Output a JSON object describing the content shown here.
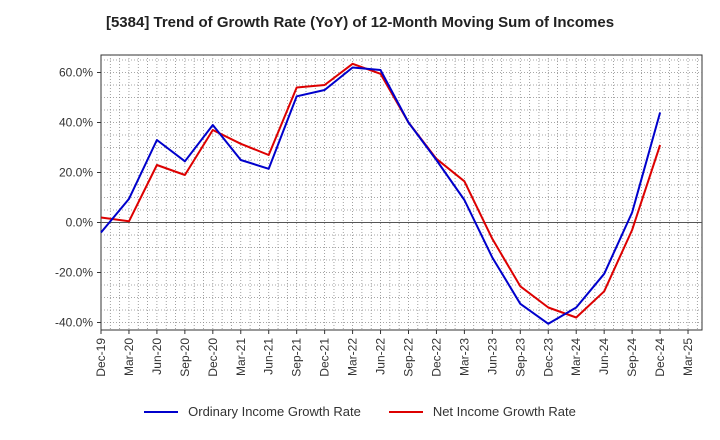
{
  "title": "[5384]  Trend of Growth Rate (YoY) of 12-Month Moving Sum of Incomes",
  "chart_data": {
    "type": "line",
    "title": "[5384]  Trend of Growth Rate (YoY) of 12-Month Moving Sum of Incomes",
    "xlabel": "",
    "ylabel": "",
    "x": [
      "Dec-19",
      "Mar-20",
      "Jun-20",
      "Sep-20",
      "Dec-20",
      "Mar-21",
      "Jun-21",
      "Sep-21",
      "Dec-21",
      "Mar-22",
      "Jun-22",
      "Sep-22",
      "Dec-22",
      "Mar-23",
      "Jun-23",
      "Sep-23",
      "Dec-23",
      "Mar-24",
      "Jun-24",
      "Sep-24",
      "Dec-24"
    ],
    "x_tick_labels": [
      "Dec-19",
      "Mar-20",
      "Jun-20",
      "Sep-20",
      "Dec-20",
      "Mar-21",
      "Jun-21",
      "Sep-21",
      "Dec-21",
      "Mar-22",
      "Jun-22",
      "Sep-22",
      "Dec-22",
      "Mar-23",
      "Jun-23",
      "Sep-23",
      "Dec-23",
      "Mar-24",
      "Jun-24",
      "Sep-24",
      "Dec-24",
      "Mar-25"
    ],
    "ylim": [
      -43,
      67
    ],
    "y_ticks": [
      -40,
      -20,
      0,
      20,
      40,
      60
    ],
    "y_tick_labels": [
      "-40.0%",
      "-20.0%",
      "0.0%",
      "20.0%",
      "40.0%",
      "60.0%"
    ],
    "grid": true,
    "legend_position": "bottom",
    "series": [
      {
        "name": "Ordinary Income Growth Rate",
        "color": "#0000cc",
        "values": [
          -4,
          9.5,
          33,
          24.5,
          39,
          25,
          21.5,
          50.5,
          53,
          62,
          61,
          40,
          25,
          9,
          -14,
          -32.5,
          -40.5,
          -34,
          -20.5,
          4,
          44
        ]
      },
      {
        "name": "Net Income Growth Rate",
        "color": "#dd0000",
        "values": [
          2,
          0.5,
          23,
          19,
          37,
          31.5,
          27,
          54,
          55,
          63.5,
          59.5,
          40,
          25.5,
          16.5,
          -6.5,
          -25.5,
          -34,
          -38,
          -27.5,
          -3,
          31
        ]
      }
    ]
  }
}
